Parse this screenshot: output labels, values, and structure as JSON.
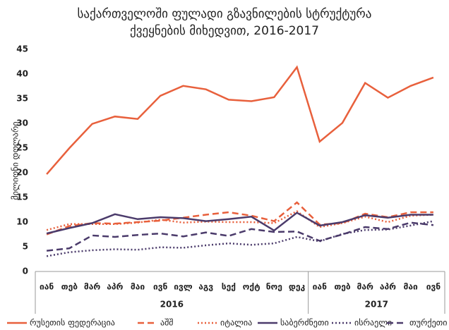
{
  "chart_data": {
    "type": "line",
    "title": [
      "საქართველოში ფულადი გზავნილების სტრუქტურა",
      "ქვეყნების მიხედვით, 2016-2017"
    ],
    "y_label": "მილიონი დოლარი",
    "categories": [
      "იან",
      "თებ",
      "მარ",
      "აპრ",
      "მაი",
      "ივნ",
      "ივლ",
      "აგვ",
      "სექ",
      "ოქტ",
      "ნოე",
      "დეკ",
      "იან",
      "თებ",
      "მარ",
      "აპრ",
      "მაი",
      "ივნ"
    ],
    "x_groups": [
      {
        "label": "2016",
        "size": 12
      },
      {
        "label": "2017",
        "size": 6
      }
    ],
    "ylim": [
      0,
      45
    ],
    "yticks": [
      0,
      5,
      10,
      15,
      20,
      25,
      30,
      35,
      40,
      45
    ],
    "grid": false,
    "legend": "bottom",
    "series": [
      {
        "name": "რუსეთის ფედერაცია",
        "color": "#e8603c",
        "dash": "solid",
        "values": [
          19.7,
          25.0,
          29.9,
          31.4,
          30.9,
          35.6,
          37.6,
          36.9,
          34.8,
          34.5,
          35.3,
          41.4,
          26.3,
          30.1,
          38.2,
          35.2,
          37.6,
          39.3
        ]
      },
      {
        "name": "აშშ",
        "color": "#e8603c",
        "dash": "dashed",
        "values": [
          7.5,
          9.2,
          9.8,
          9.7,
          10.0,
          10.3,
          10.9,
          11.5,
          12.0,
          11.3,
          10.2,
          14.0,
          9.5,
          9.8,
          11.7,
          11.0,
          12.0,
          12.0
        ]
      },
      {
        "name": "იტალია",
        "color": "#e8603c",
        "dash": "dotted",
        "values": [
          8.4,
          9.6,
          9.6,
          9.6,
          9.9,
          10.5,
          9.9,
          10.1,
          10.0,
          10.0,
          9.8,
          12.2,
          9.0,
          9.8,
          11.1,
          10.0,
          11.3,
          11.5
        ]
      },
      {
        "name": "საბერძნეთი",
        "color": "#4b3b6b",
        "dash": "solid",
        "values": [
          7.7,
          8.8,
          9.8,
          11.6,
          10.6,
          11.0,
          10.8,
          10.2,
          10.6,
          11.1,
          8.3,
          11.9,
          9.3,
          10.0,
          11.4,
          10.9,
          11.5,
          11.5
        ]
      },
      {
        "name": "ისრაელი",
        "color": "#4b3b6b",
        "dash": "dotted",
        "values": [
          3.1,
          3.9,
          4.3,
          4.5,
          4.4,
          4.9,
          4.8,
          5.3,
          5.7,
          5.4,
          5.7,
          7.0,
          6.1,
          7.6,
          8.4,
          8.5,
          9.3,
          10.2
        ]
      },
      {
        "name": "თურქეთი",
        "color": "#4b3b6b",
        "dash": "dashed",
        "values": [
          4.2,
          4.7,
          7.3,
          7.0,
          7.4,
          7.7,
          7.1,
          7.9,
          7.2,
          8.6,
          8.0,
          8.1,
          6.2,
          7.5,
          9.0,
          8.6,
          9.9,
          9.4
        ]
      }
    ]
  }
}
